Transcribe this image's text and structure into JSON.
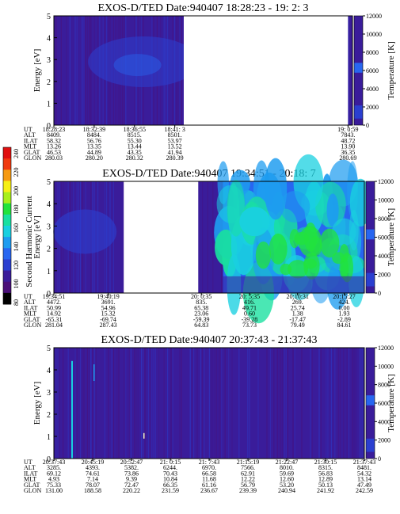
{
  "colors": {
    "background": "#3a1c9a",
    "scale": [
      "#000000",
      "#4a0f78",
      "#3a1c9a",
      "#2b3fd0",
      "#2866f0",
      "#1e9cf0",
      "#19d0e0",
      "#19e0a0",
      "#22e33c",
      "#a8ef1a",
      "#f5ef14",
      "#f59a12",
      "#f03a10",
      "#e01010"
    ]
  },
  "colorbar": {
    "label": "Second Harmonic Current",
    "ticks": [
      "240",
      "220",
      "200",
      "180",
      "160",
      "140",
      "120",
      "100",
      "80"
    ]
  },
  "panel_row_labels": [
    "UT",
    "ALT",
    "ILAT",
    "MLT",
    "GLAT",
    "GLON"
  ],
  "chart_data": [
    {
      "type": "heatmap",
      "title": "EXOS-D/TED    Date:940407   18:28:23 - 19: 2: 3",
      "ylabel": "Energy [eV]",
      "ylim": [
        0,
        5
      ],
      "yticks": [
        "0",
        "1",
        "2",
        "3",
        "4",
        "5"
      ],
      "y2label": "Temperature [K]",
      "y2lim": [
        0,
        12000
      ],
      "y2ticks": [
        "0",
        "2000",
        "4000",
        "6000",
        "8000",
        "10000",
        "12000"
      ],
      "data_gaps": [
        [
          0.435,
          0.985
        ]
      ],
      "orbit_columns": [
        {
          "frac": 0.0,
          "UT": "18:28:23",
          "ALT": "8409.",
          "ILAT": "58.32",
          "MLT": "13.26",
          "GLAT": "46.53",
          "GLON": "280.03"
        },
        {
          "frac": 0.135,
          "UT": "18:32:39",
          "ALT": "8484.",
          "ILAT": "56.76",
          "MLT": "13.35",
          "GLAT": "44.89",
          "GLON": "280.20"
        },
        {
          "frac": 0.27,
          "UT": "18:36:55",
          "ALT": "8515.",
          "ILAT": "55.30",
          "MLT": "13.44",
          "GLAT": "43.35",
          "GLON": "280.32"
        },
        {
          "frac": 0.405,
          "UT": "18:41: 3",
          "ALT": "8501.",
          "ILAT": "53.97",
          "MLT": "13.52",
          "GLAT": "41.94",
          "GLON": "280.39"
        },
        {
          "frac": 0.985,
          "UT": "19: 0:59",
          "ALT": "7843.",
          "ILAT": "48.72",
          "MLT": "13.90",
          "GLAT": "36.35",
          "GLON": "280.69"
        }
      ]
    },
    {
      "type": "heatmap",
      "title": "EXOS-D/TED    Date:940407   19:34:51 - 20:18: 7",
      "ylabel": "Energy [eV]",
      "ylim": [
        0,
        5
      ],
      "yticks": [
        "0",
        "1",
        "2",
        "3",
        "4",
        "5"
      ],
      "y2label": "Temperature [K]",
      "y2lim": [
        0,
        12000
      ],
      "y2ticks": [
        "0",
        "2000",
        "4000",
        "6000",
        "8000",
        "10000",
        "12000"
      ],
      "data_gaps": [
        [
          0.225,
          0.465
        ]
      ],
      "orbit_columns": [
        {
          "frac": 0.0,
          "UT": "19:34:51",
          "ALT": "4472.",
          "ILAT": "50.99",
          "MLT": "14.92",
          "GLAT": "-65.31",
          "GLON": "281.04"
        },
        {
          "frac": 0.175,
          "UT": "19:40:19",
          "ALT": "3691.",
          "ILAT": "54.96",
          "MLT": "15.32",
          "GLAT": "-69.74",
          "GLON": "287.43"
        },
        {
          "frac": 0.475,
          "UT": "20: 0:35",
          "ALT": "835.",
          "ILAT": "65.38",
          "MLT": "23.06",
          "GLAT": "-59.39",
          "GLON": "64.83"
        },
        {
          "frac": 0.63,
          "UT": "20: 5:35",
          "ALT": "416.",
          "ILAT": "49.71",
          "MLT": "0.60",
          "GLAT": "-39.28",
          "GLON": "73.73"
        },
        {
          "frac": 0.785,
          "UT": "20:10:31",
          "ALT": "269.",
          "ILAT": "25.74",
          "MLT": "1.38",
          "GLAT": "-17.47",
          "GLON": "79.49"
        },
        {
          "frac": 0.935,
          "UT": "20:15:27",
          "ALT": "424.",
          "ILAT": "0.00",
          "MLT": "1.93",
          "GLAT": "-2.89",
          "GLON": "84.61"
        }
      ]
    },
    {
      "type": "heatmap",
      "title": "EXOS-D/TED    Date:940407   20:37:43 - 21:37:43",
      "ylabel": "Energy [eV]",
      "ylim": [
        0,
        5
      ],
      "yticks": [
        "0",
        "1",
        "2",
        "3",
        "4",
        "5"
      ],
      "y2label": "Temperature [K]",
      "y2lim": [
        0,
        12000
      ],
      "y2ticks": [
        "0",
        "2000",
        "4000",
        "6000",
        "8000",
        "10000",
        "12000"
      ],
      "data_gaps": [],
      "orbit_columns": [
        {
          "frac": 0.0,
          "UT": "20:37:43",
          "ALT": "3285.",
          "ILAT": "69.12",
          "MLT": "4.93",
          "GLAT": "75.33",
          "GLON": "131.00"
        },
        {
          "frac": 0.125,
          "UT": "20:45:19",
          "ALT": "4393.",
          "ILAT": "74.61",
          "MLT": "7.14",
          "GLAT": "78.07",
          "GLON": "188.58"
        },
        {
          "frac": 0.25,
          "UT": "20:52:47",
          "ALT": "5382.",
          "ILAT": "73.86",
          "MLT": "9.39",
          "GLAT": "72.47",
          "GLON": "220.22"
        },
        {
          "frac": 0.375,
          "UT": "21: 0:15",
          "ALT": "6244.",
          "ILAT": "70.43",
          "MLT": "10.84",
          "GLAT": "66.35",
          "GLON": "231.59"
        },
        {
          "frac": 0.5,
          "UT": "21: 7:43",
          "ALT": "6970.",
          "ILAT": "66.58",
          "MLT": "11.68",
          "GLAT": "61.16",
          "GLON": "236.67"
        },
        {
          "frac": 0.625,
          "UT": "21:15:19",
          "ALT": "7566.",
          "ILAT": "62.91",
          "MLT": "12.22",
          "GLAT": "56.79",
          "GLON": "239.39"
        },
        {
          "frac": 0.75,
          "UT": "21:22:47",
          "ALT": "8010.",
          "ILAT": "59.69",
          "MLT": "12.60",
          "GLAT": "53.20",
          "GLON": "240.94"
        },
        {
          "frac": 0.875,
          "UT": "21:30:15",
          "ALT": "8315.",
          "ILAT": "56.83",
          "MLT": "12.89",
          "GLAT": "50.13",
          "GLON": "241.92"
        },
        {
          "frac": 1.0,
          "UT": "21:37:43",
          "ALT": "8481.",
          "ILAT": "54.32",
          "MLT": "13.14",
          "GLAT": "47.49",
          "GLON": "242.59"
        }
      ]
    }
  ]
}
